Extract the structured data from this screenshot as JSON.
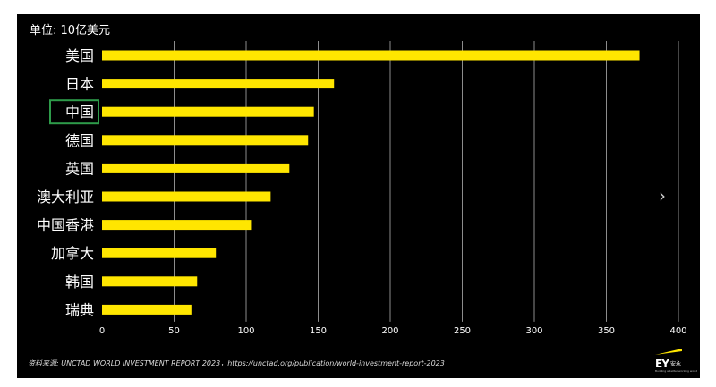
{
  "unit_label": "单位: 10亿美元",
  "source_note": "资料来源: UNCTAD WORLD INVESTMENT REPORT 2023，https://unctad.org/publication/world-investment-report-2023",
  "next_icon": "chevron-right-icon",
  "logo": {
    "mark": "EY",
    "cn": "安永",
    "tagline": "Building a better working world"
  },
  "colors": {
    "bar": "#ffe600",
    "background": "#000000",
    "grid": "#8c8c8c",
    "text": "#ffffff",
    "highlight_box": "#2e9b4a"
  },
  "highlighted_category": "中国",
  "chart_data": {
    "type": "bar",
    "orientation": "horizontal",
    "categories": [
      "美国",
      "日本",
      "中国",
      "德国",
      "英国",
      "澳大利亚",
      "中国香港",
      "加拿大",
      "韩国",
      "瑞典"
    ],
    "values": [
      373,
      161,
      147,
      143,
      130,
      117,
      104,
      79,
      66,
      62
    ],
    "xlim": [
      0,
      400
    ],
    "xticks": [
      0,
      50,
      100,
      150,
      200,
      250,
      300,
      350,
      400
    ],
    "grid": true
  }
}
